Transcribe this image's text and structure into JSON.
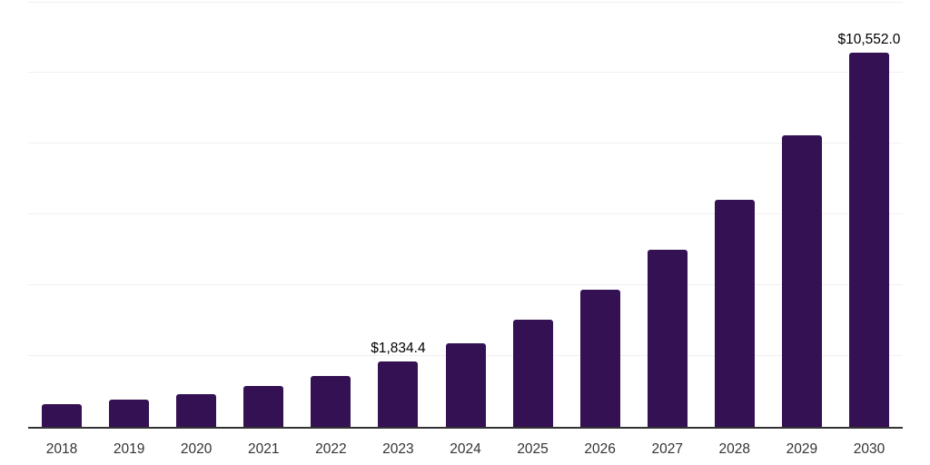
{
  "chart_data": {
    "type": "bar",
    "title": "",
    "xlabel": "",
    "ylabel": "",
    "categories": [
      "2018",
      "2019",
      "2020",
      "2021",
      "2022",
      "2023",
      "2024",
      "2025",
      "2026",
      "2027",
      "2028",
      "2029",
      "2030"
    ],
    "values": [
      640,
      770,
      925,
      1150,
      1425,
      1834.4,
      2355,
      3020,
      3880,
      4990,
      6420,
      8225,
      10552.0
    ],
    "annotations": [
      {
        "category": "2023",
        "text": "$1,834.4"
      },
      {
        "category": "2030",
        "text": "$10,552.0"
      }
    ],
    "ylim": [
      0,
      12000
    ],
    "gridline_values": [
      2000,
      4000,
      6000,
      8000,
      10000,
      12000
    ],
    "grid": "horizontal-light",
    "legend": "none",
    "y_axis_labels_visible": false,
    "colors": {
      "bar": "#341152",
      "axis_line": "#333333",
      "gridline": "#f0f0f0",
      "tick_label": "#333333",
      "annotation": "#000000",
      "background": "#ffffff"
    }
  }
}
